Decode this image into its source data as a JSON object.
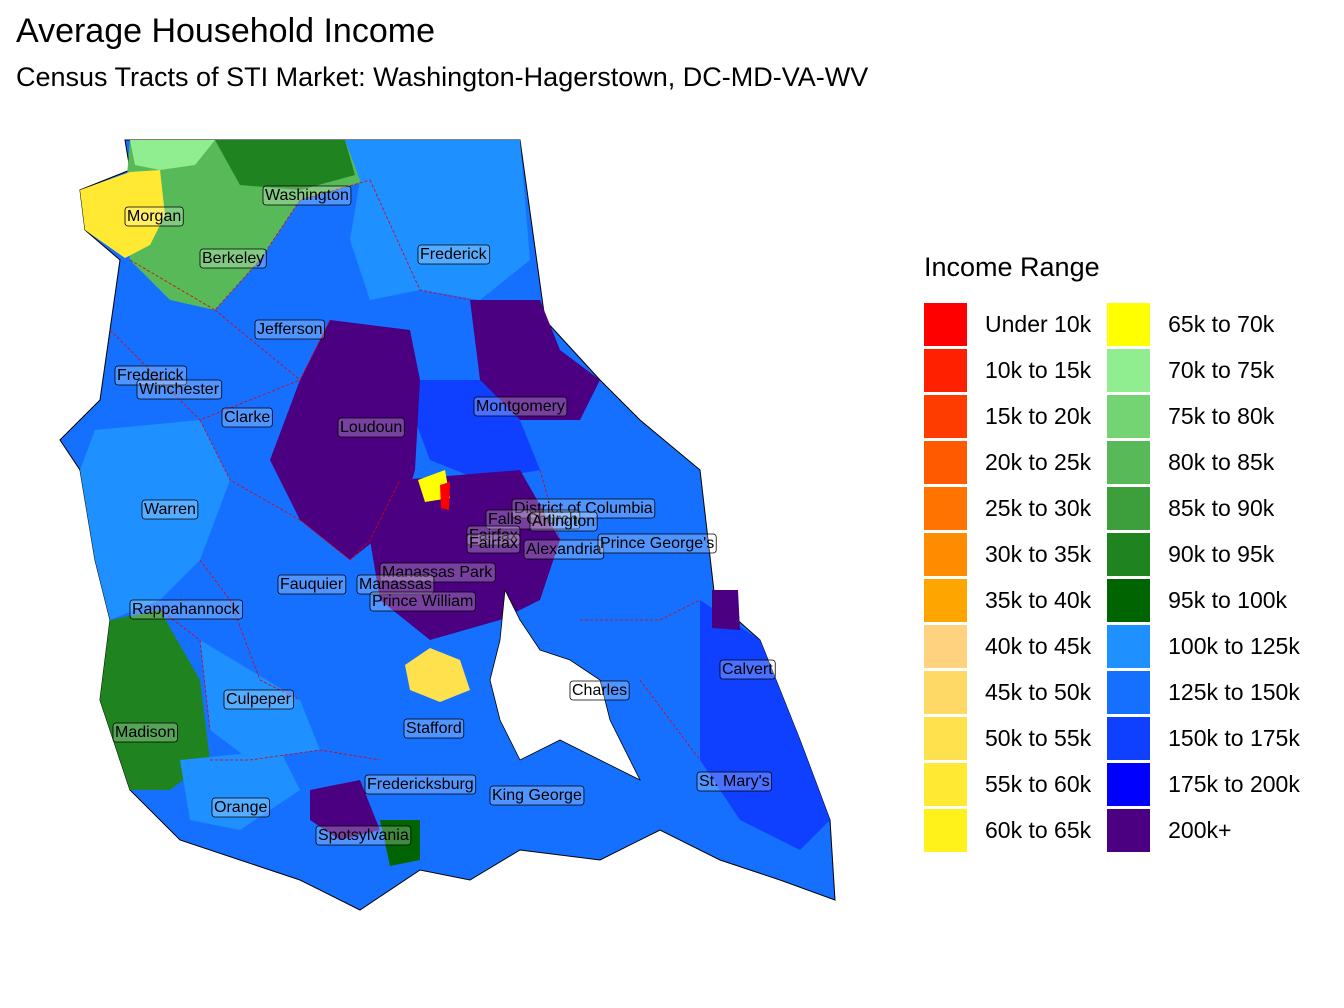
{
  "title": "Average Household Income",
  "subtitle": "Census Tracts of STI Market: Washington-Hagerstown, DC-MD-VA-WV",
  "legend": {
    "title": "Income Range",
    "items": [
      {
        "label": "Under 10k",
        "color": "#ff0000"
      },
      {
        "label": "10k to 15k",
        "color": "#ff2000"
      },
      {
        "label": "15k to 20k",
        "color": "#ff3c00"
      },
      {
        "label": "20k to 25k",
        "color": "#ff5a00"
      },
      {
        "label": "25k to 30k",
        "color": "#ff7400"
      },
      {
        "label": "30k to 35k",
        "color": "#ff8c00"
      },
      {
        "label": "35k to 40k",
        "color": "#ffa500"
      },
      {
        "label": "40k to 45k",
        "color": "#ffd27f"
      },
      {
        "label": "45k to 50k",
        "color": "#ffd966"
      },
      {
        "label": "50k to 55k",
        "color": "#ffe14d"
      },
      {
        "label": "55k to 60k",
        "color": "#ffe933"
      },
      {
        "label": "60k to 65k",
        "color": "#fff21a"
      },
      {
        "label": "65k to 70k",
        "color": "#ffff00"
      },
      {
        "label": "70k to 75k",
        "color": "#90ee90"
      },
      {
        "label": "75k to 80k",
        "color": "#74d474"
      },
      {
        "label": "80k to 85k",
        "color": "#58b958"
      },
      {
        "label": "85k to 90k",
        "color": "#3c9f3c"
      },
      {
        "label": "90k to 95k",
        "color": "#1f841f"
      },
      {
        "label": "95k to 100k",
        "color": "#006400"
      },
      {
        "label": "100k to 125k",
        "color": "#1e90ff"
      },
      {
        "label": "125k to 150k",
        "color": "#1670ff"
      },
      {
        "label": "150k to 175k",
        "color": "#0f3fff"
      },
      {
        "label": "175k to 200k",
        "color": "#0000ff"
      },
      {
        "label": "200k+",
        "color": "#4b0082"
      }
    ]
  },
  "map": {
    "counties": [
      {
        "name": "Washington",
        "color": "#1670ff"
      },
      {
        "name": "Morgan",
        "color": "#ffe933"
      },
      {
        "name": "Berkeley",
        "color": "#74d474"
      },
      {
        "name": "Frederick",
        "color": "#1670ff"
      },
      {
        "name": "Jefferson",
        "color": "#1e90ff"
      },
      {
        "name": "Frederick",
        "color": "#1e90ff"
      },
      {
        "name": "Winchester",
        "color": "#1e90ff"
      },
      {
        "name": "Clarke",
        "color": "#1670ff"
      },
      {
        "name": "Loudoun",
        "color": "#4b0082"
      },
      {
        "name": "Montgomery",
        "color": "#0f3fff"
      },
      {
        "name": "Warren",
        "color": "#1e90ff"
      },
      {
        "name": "District of Columbia",
        "color": "#1670ff"
      },
      {
        "name": "Falls Church",
        "color": "#4b0082"
      },
      {
        "name": "Arlington",
        "color": "#4b0082"
      },
      {
        "name": "Fairfax",
        "color": "#4b0082"
      },
      {
        "name": "Fairfax",
        "color": "#4b0082"
      },
      {
        "name": "Alexandria",
        "color": "#1670ff"
      },
      {
        "name": "Prince George's",
        "color": "#0f3fff"
      },
      {
        "name": "Fauquier",
        "color": "#1670ff"
      },
      {
        "name": "Manassas Park",
        "color": "#1670ff"
      },
      {
        "name": "Manassas",
        "color": "#1670ff"
      },
      {
        "name": "Prince William",
        "color": "#4b0082"
      },
      {
        "name": "Rappahannock",
        "color": "#1e90ff"
      },
      {
        "name": "Calvert",
        "color": "#0f3fff"
      },
      {
        "name": "Charles",
        "color": "#1670ff"
      },
      {
        "name": "Culpeper",
        "color": "#1e90ff"
      },
      {
        "name": "Stafford",
        "color": "#1670ff"
      },
      {
        "name": "Madison",
        "color": "#1f841f"
      },
      {
        "name": "St. Mary's",
        "color": "#0f3fff"
      },
      {
        "name": "Fredericksburg",
        "color": "#1670ff"
      },
      {
        "name": "King George",
        "color": "#1670ff"
      },
      {
        "name": "Orange",
        "color": "#1e90ff"
      },
      {
        "name": "Spotsylvania",
        "color": "#1670ff"
      }
    ]
  }
}
